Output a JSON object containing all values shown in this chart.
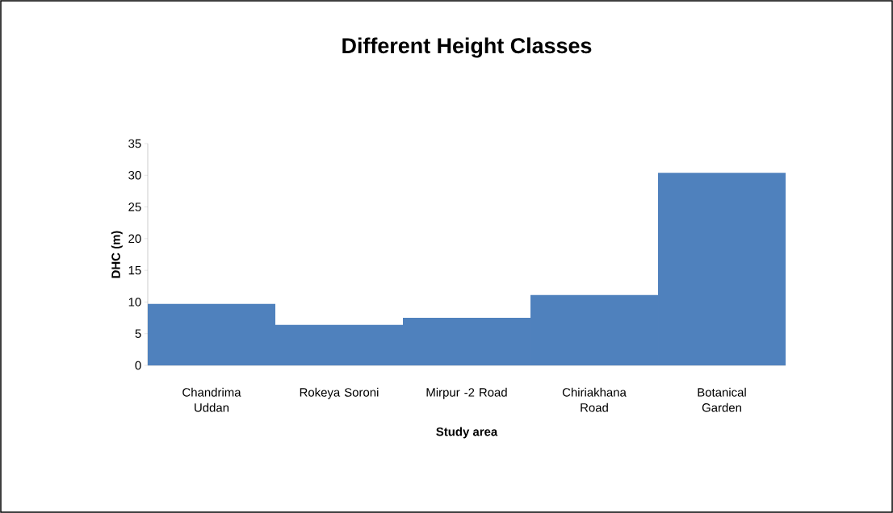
{
  "chart_data": {
    "type": "bar",
    "title": "Different Height Classes",
    "xlabel": "Study area",
    "ylabel": "DHC (m)",
    "categories": [
      "Chandrima Uddan",
      "Rokeya Soroni",
      "Mirpur -2 Road",
      "Chiriakhana Road",
      "Botanical Garden"
    ],
    "values": [
      9.7,
      6.4,
      7.5,
      11.1,
      30.4
    ],
    "color": "#4f81bd",
    "ylim": [
      0,
      35
    ],
    "yticks": [
      0,
      5,
      10,
      15,
      20,
      25,
      30,
      35
    ],
    "grid": false
  }
}
